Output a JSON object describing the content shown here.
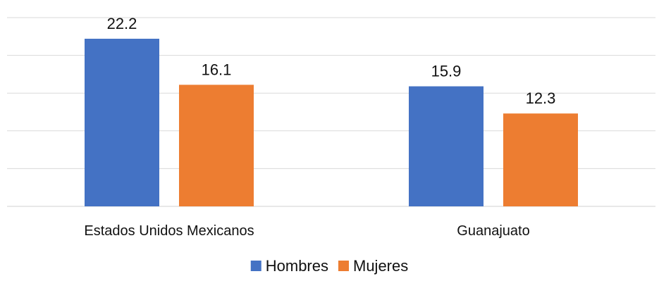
{
  "chart_data": {
    "type": "bar",
    "categories": [
      "Estados Unidos Mexicanos",
      "Guanajuato"
    ],
    "series": [
      {
        "name": "Hombres",
        "values": [
          22.2,
          15.9
        ],
        "color": "#4472c4"
      },
      {
        "name": "Mujeres",
        "values": [
          16.1,
          12.3
        ],
        "color": "#ed7d31"
      }
    ],
    "ylim": [
      0,
      25
    ],
    "grid": true,
    "legend": "bottom-center",
    "data_labels": true
  }
}
